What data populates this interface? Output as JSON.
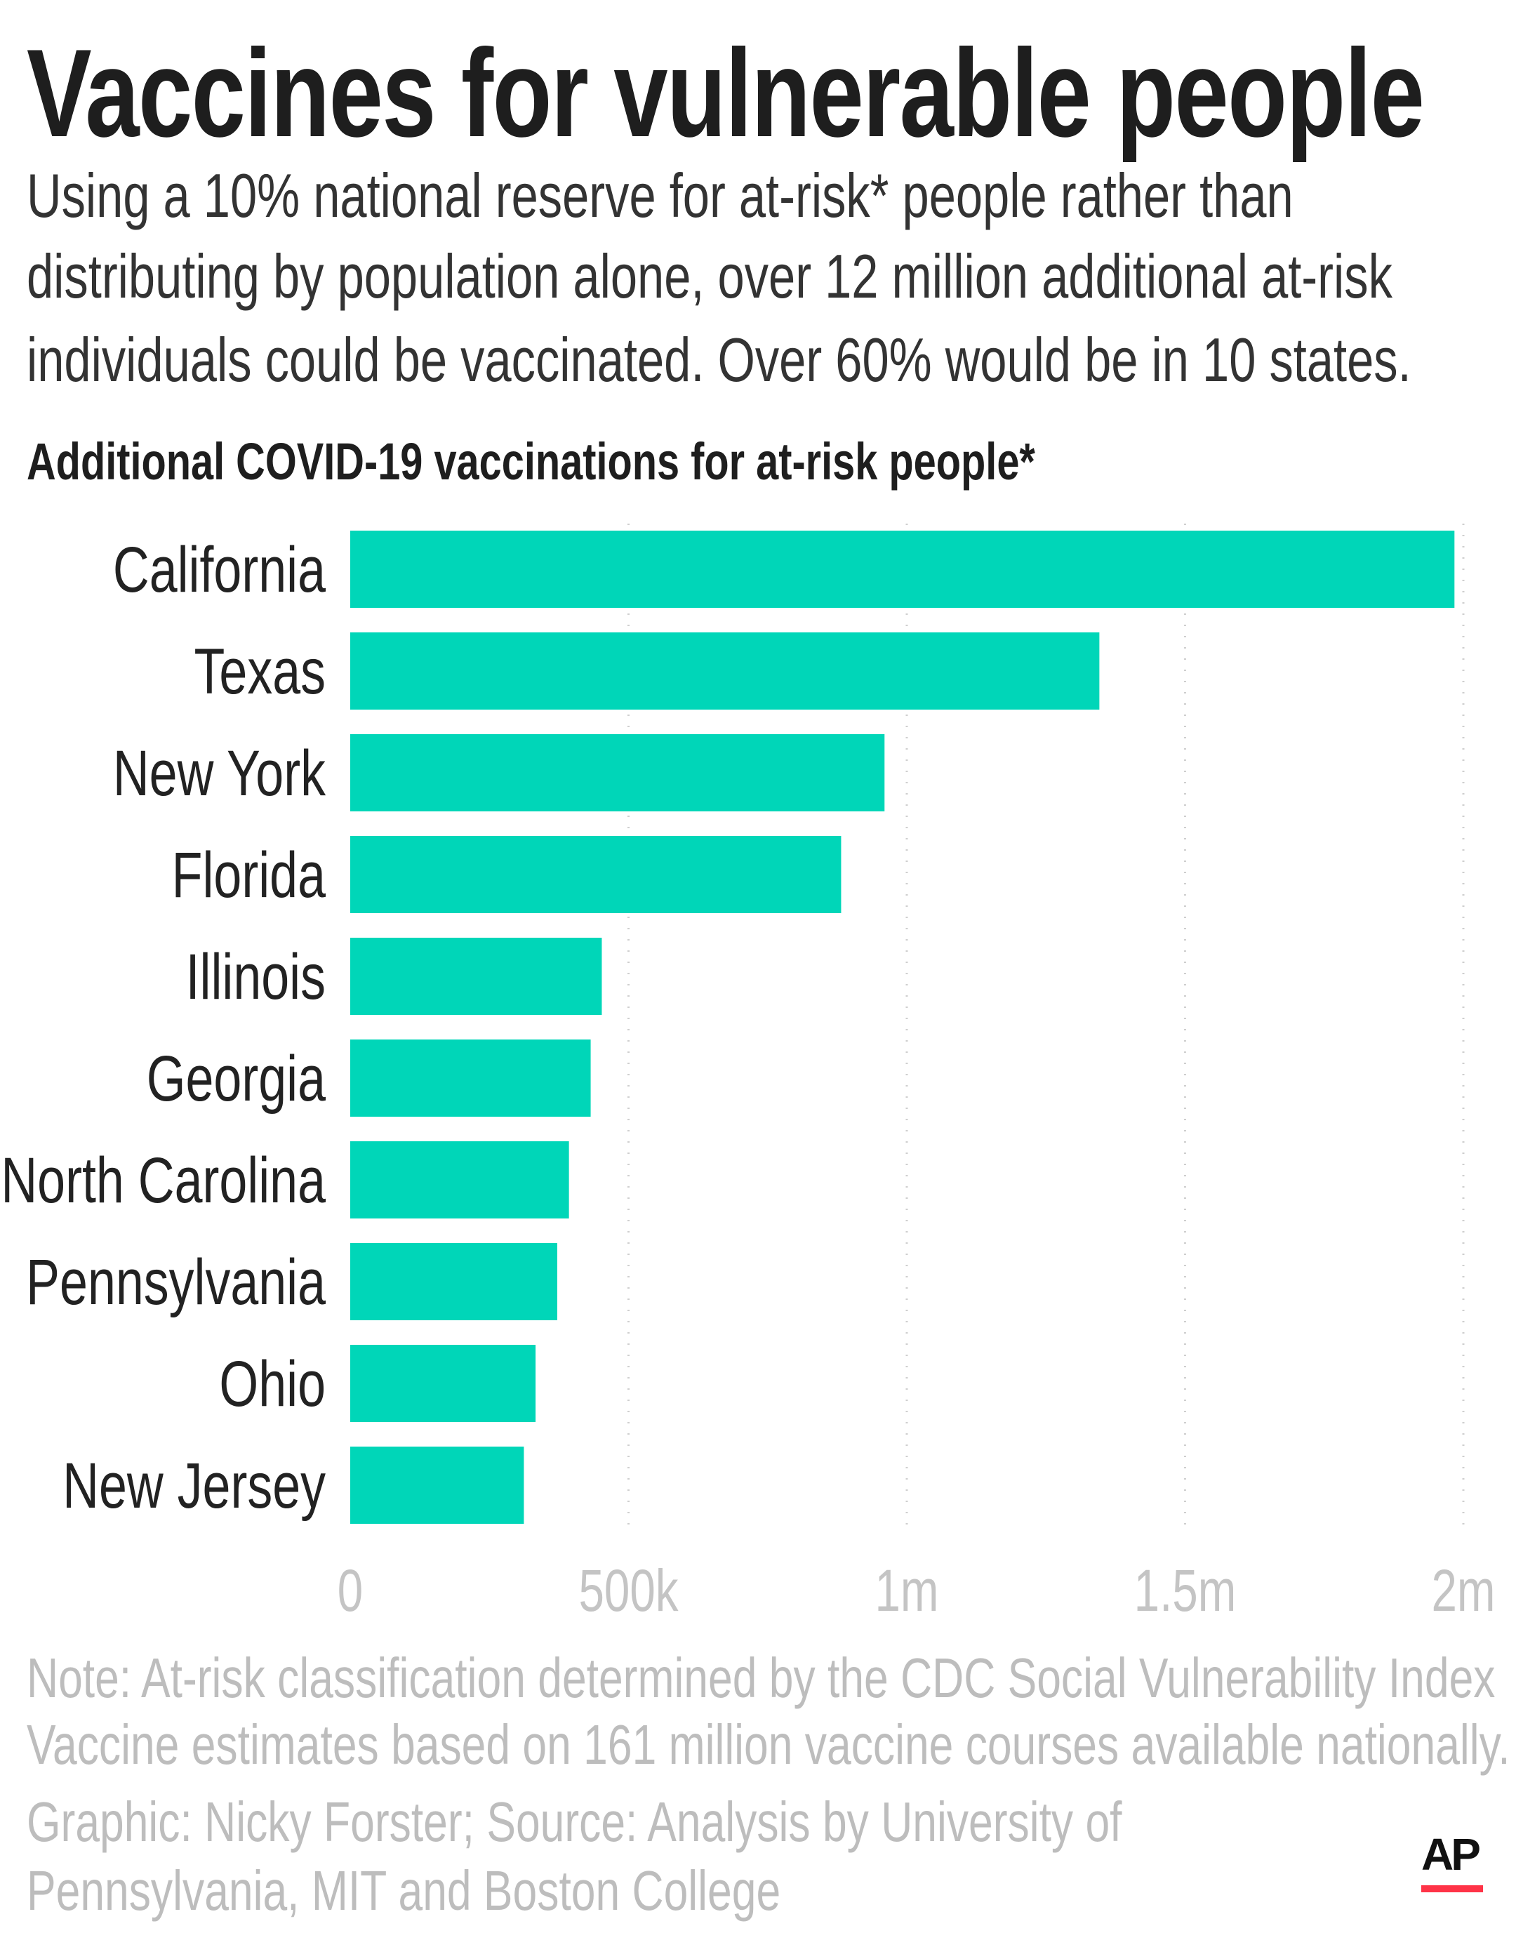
{
  "title": "Vaccines for vulnerable people",
  "subtitle_lines": [
    "Using a 10% national reserve for at-risk* people rather than",
    "distributing by population alone, over 12 million additional at-risk",
    "individuals could be vaccinated. Over 60% would be in 10 states."
  ],
  "note_lines": [
    "Note: At-risk classification determined by the CDC Social Vulnerability Index",
    "Vaccine estimates based on 161 million vaccine courses available nationally."
  ],
  "credit_lines": [
    "Graphic: Nicky Forster; Source: Analysis by University of",
    "Pennsylvania, MIT and Boston College"
  ],
  "logo": "AP",
  "colors": {
    "bar": "#00d6b8",
    "logo_underline": "#ff3347"
  },
  "chart_data": {
    "type": "bar",
    "orientation": "horizontal",
    "title": "Additional COVID-19 vaccinations for at-risk people*",
    "categories": [
      "California",
      "Texas",
      "New York",
      "Florida",
      "Illinois",
      "Georgia",
      "North Carolina",
      "Pennsylvania",
      "Ohio",
      "New Jersey"
    ],
    "values": [
      1984000,
      1346000,
      960000,
      882000,
      452000,
      432000,
      393000,
      372000,
      333000,
      312000
    ],
    "xlim": [
      0,
      2000000
    ],
    "xticks": [
      0,
      500000,
      1000000,
      1500000,
      2000000
    ],
    "xtick_labels": [
      "0",
      "500k",
      "1m",
      "1.5m",
      "2m"
    ],
    "grid": "vertical dotted",
    "legend": "none"
  }
}
